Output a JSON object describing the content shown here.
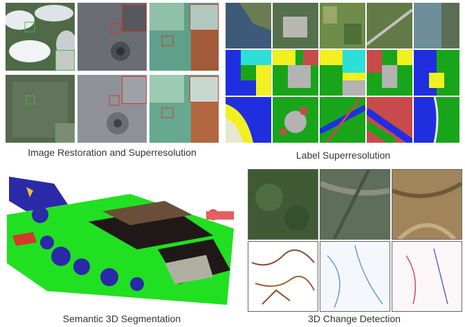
{
  "panels": {
    "restoration": {
      "caption": "Image Restoration and Superresolution"
    },
    "label_sr": {
      "caption": "Label Superresolution"
    },
    "seg3d": {
      "caption": "Semantic 3D Segmentation"
    },
    "change": {
      "caption": "3D Change Detection"
    }
  },
  "colors": {
    "label_blue": "#1f2fe0",
    "label_yellow": "#f2f020",
    "label_green": "#19a51a",
    "label_cyan": "#2ce0d8",
    "label_red": "#c84a4a",
    "label_gray": "#b3b3b3",
    "seg_green": "#21e021",
    "seg_tree": "#2a2aa8",
    "seg_roof": "#201818",
    "highlight_red": "#d23a2a"
  }
}
